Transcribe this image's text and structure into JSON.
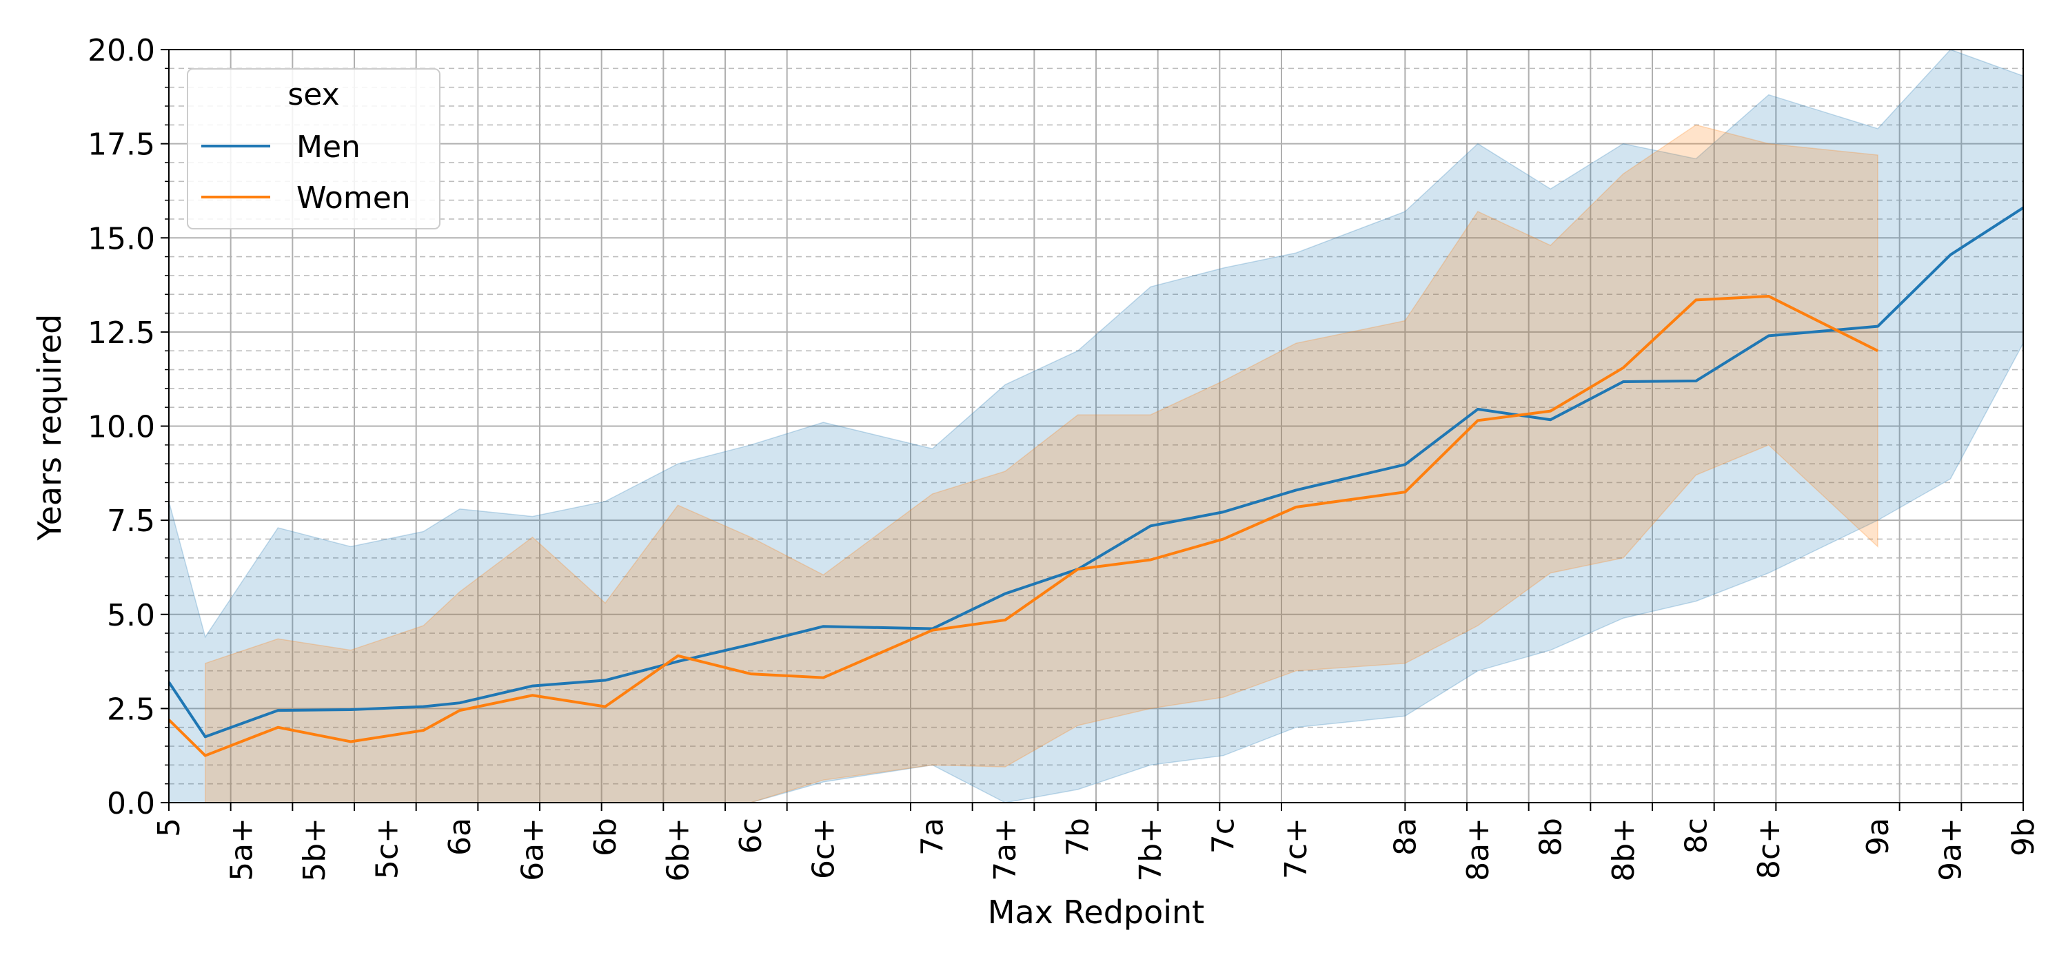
{
  "chart_data": {
    "type": "line",
    "title": "",
    "xlabel": "Max Redpoint",
    "ylabel": "Years required",
    "ylim": [
      0,
      20
    ],
    "yticks": [
      "0.0",
      "2.5",
      "5.0",
      "7.5",
      "10.0",
      "12.5",
      "15.0",
      "17.5",
      "20.0"
    ],
    "grid": true,
    "legend": {
      "title": "sex",
      "placement": "upper-left"
    },
    "x_positions": [
      0,
      1,
      2,
      3,
      4,
      5,
      6,
      7,
      8,
      9,
      10,
      12,
      13,
      14,
      15,
      16,
      17,
      18,
      20,
      21,
      22,
      23,
      24,
      25,
      26,
      28,
      29,
      30
    ],
    "x_tick_labels": [
      "5",
      "5a+",
      "5b+",
      "5c+",
      "6a",
      "6a+",
      "6b",
      "6b+",
      "6c",
      "6c+",
      "7a",
      "7a+",
      "7b",
      "7b+",
      "7c",
      "7c+",
      "8a",
      "8a+",
      "8b",
      "8b+",
      "8c",
      "8c+",
      "9a",
      "9a+",
      "9b"
    ],
    "x_tick_positions": [
      0,
      2,
      4,
      6,
      8,
      10,
      12,
      14,
      16,
      18,
      21,
      23,
      25,
      27,
      29,
      31,
      34,
      36,
      38,
      40,
      42,
      44,
      47,
      49,
      51
    ],
    "series": [
      {
        "name": "Men",
        "color": "#1f77b4",
        "x": [
          0,
          1,
          3,
          5,
          7,
          8,
          10,
          12,
          14,
          16,
          18,
          21,
          23,
          25,
          27,
          29,
          31,
          34,
          36,
          38,
          40,
          42,
          44,
          47,
          49,
          51
        ],
        "values": [
          3.2,
          1.75,
          2.45,
          2.47,
          2.55,
          2.65,
          3.1,
          3.25,
          3.75,
          4.2,
          4.68,
          4.62,
          5.55,
          6.2,
          7.35,
          7.72,
          8.3,
          8.98,
          10.45,
          10.17,
          11.18,
          11.2,
          12.4,
          12.65,
          14.55,
          15.8
        ],
        "ci_lower": [
          0,
          0,
          0,
          0,
          0,
          0,
          0,
          0,
          0,
          0,
          0.55,
          1.0,
          0,
          0.35,
          1.0,
          1.25,
          2.0,
          2.3,
          3.5,
          4.05,
          4.9,
          5.35,
          6.1,
          7.5,
          8.6,
          12.2
        ],
        "ci_upper": [
          8.0,
          4.4,
          7.3,
          6.8,
          7.2,
          7.8,
          7.6,
          8.0,
          9.0,
          9.5,
          10.1,
          9.4,
          11.1,
          12.0,
          13.7,
          14.2,
          14.6,
          15.7,
          17.5,
          16.3,
          17.5,
          17.1,
          18.8,
          17.9,
          20.4,
          19.3
        ]
      },
      {
        "name": "Women",
        "color": "#ff7f0e",
        "x": [
          0,
          1,
          3,
          5,
          7,
          8,
          10,
          12,
          14,
          16,
          18,
          21,
          23,
          25,
          27,
          29,
          31,
          34,
          36,
          38,
          40,
          42,
          44,
          47
        ],
        "values": [
          2.2,
          1.25,
          2.0,
          1.62,
          1.92,
          2.45,
          2.85,
          2.55,
          3.9,
          3.42,
          3.32,
          4.58,
          4.85,
          6.2,
          6.45,
          7.0,
          7.85,
          8.25,
          10.15,
          10.4,
          11.55,
          13.35,
          13.45,
          12.0
        ],
        "ci_lower": [
          null,
          0,
          0,
          0,
          0,
          0,
          0,
          0,
          0,
          0,
          0.6,
          1.0,
          0.95,
          2.05,
          2.5,
          2.8,
          3.5,
          3.7,
          4.7,
          6.1,
          6.5,
          8.7,
          9.5,
          6.8
        ],
        "ci_upper": [
          null,
          3.7,
          4.35,
          4.05,
          4.7,
          5.6,
          7.05,
          5.3,
          7.9,
          7.05,
          6.05,
          8.2,
          8.8,
          10.3,
          10.3,
          11.2,
          12.2,
          12.8,
          15.7,
          14.8,
          16.7,
          18.0,
          17.5,
          17.2
        ]
      }
    ]
  }
}
